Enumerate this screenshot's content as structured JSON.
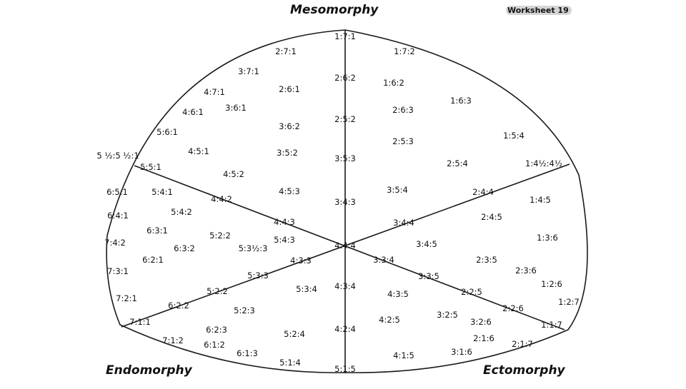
{
  "titles": {
    "mesomorphy": "Mesomorphy",
    "endomorphy": "Endomorphy",
    "ectomorphy": "Ectomorphy"
  },
  "worksheet_label": "Worksheet 19",
  "somatotype_points": [
    "1:7:1",
    "2:7:1",
    "1:7:2",
    "3:7:1",
    "2:6:2",
    "1:6:2",
    "4:7:1",
    "2:6:1",
    "3:6:1",
    "1:6:3",
    "4:6:1",
    "2:6:3",
    "2:5:2",
    "5:6:1",
    "3:6:2",
    "1:5:4",
    "2:5:3",
    "4:5:1",
    "3:5:2",
    "5 ½:5 ½:1",
    "3:5:3",
    "2:5:4",
    "1:4½:4½",
    "5:5:1",
    "4:5:2",
    "6:5:1",
    "5:4:1",
    "4:5:3",
    "3:5:4",
    "2:4:4",
    "1:4:5",
    "4:4:2",
    "3:4:3",
    "6:4:1",
    "5:4:2",
    "2:4:5",
    "4:4:3",
    "3:4:4",
    "6:3:1",
    "5:2:2",
    "5:4:3",
    "1:3:6",
    "7:4:2",
    "6:3:2",
    "5:3½:3",
    "4:4:4",
    "3:4:5",
    "6:2:1",
    "4:3:3",
    "3:3:4",
    "2:3:5",
    "7:3:1",
    "5:3:3",
    "3:3:5",
    "2:3:6",
    "1:2:6",
    "5:2:2",
    "5:3:4",
    "4:3:4",
    "2:2:5",
    "4:3:5",
    "7:2:1",
    "1:2:7",
    "6:2:2",
    "5:2:3",
    "2:2:6",
    "3:2:5",
    "4:2:5",
    "3:2:6",
    "7:1:1",
    "1:1:7",
    "6:2:3",
    "4:2:4",
    "5:2:4",
    "2:1:6",
    "7:1:2",
    "2:1:7",
    "6:1:2",
    "3:1:6",
    "6:1:3",
    "4:1:5",
    "5:1:4",
    "5:1:5"
  ]
}
